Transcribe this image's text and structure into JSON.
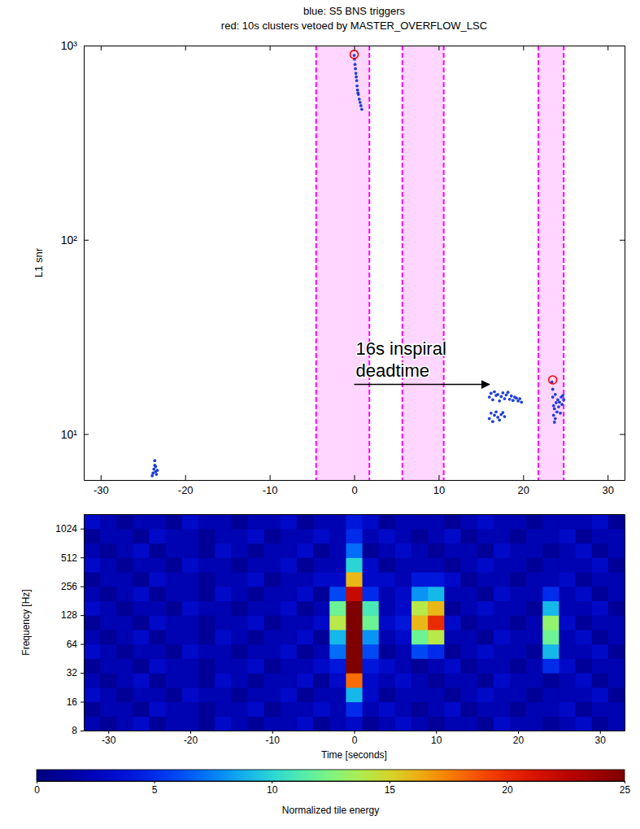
{
  "chart_data": [
    {
      "type": "scatter",
      "title": [
        "blue: S5 BNS triggers",
        "red: 10s clusters vetoed by MASTER_OVERFLOW_LSC"
      ],
      "y_label": "L1 snr",
      "log": "y",
      "xlim": [
        -32,
        32
      ],
      "xticks": [
        -30,
        -20,
        -10,
        0,
        10,
        20,
        30
      ],
      "ylim": [
        5.8,
        1000
      ],
      "yticks": [
        {
          "value": 10,
          "label": "10¹"
        },
        {
          "value": 100,
          "label": "10²"
        },
        {
          "value": 1000,
          "label": "10³"
        }
      ],
      "series": [
        {
          "color": "#1f3fd6",
          "marker": "dot",
          "x": [
            -23.9,
            -23.8,
            -23.7,
            -23.6,
            -23.6,
            -23.5,
            -23.5,
            -23.4,
            -23.3,
            0,
            0.05,
            0.1,
            0.15,
            0.2,
            0.25,
            0.3,
            0.35,
            0.4,
            0.45,
            0.5,
            0.6,
            0.7,
            0.8,
            0.9,
            16.0,
            16.2,
            16.4,
            16.6,
            16.8,
            17.0,
            17.2,
            17.4,
            17.6,
            17.8,
            18.0,
            18.2,
            18.4,
            18.6,
            18.8,
            19.0,
            19.2,
            19.4,
            19.6,
            19.8,
            16.0,
            16.2,
            16.4,
            16.6,
            16.8,
            17.0,
            17.2,
            17.4,
            17.6,
            17.8,
            23.4,
            23.5,
            23.5,
            23.6,
            23.6,
            23.7,
            23.7,
            23.8,
            23.8,
            23.9,
            24.0,
            24.1,
            24.2,
            24.3,
            24.4,
            24.5,
            24.6,
            24.7,
            24.8
          ],
          "values": [
            6.1,
            6.3,
            6.6,
            6.9,
            7.3,
            6.4,
            6.8,
            6.2,
            6.5,
            890,
            850,
            800,
            760,
            720,
            690,
            660,
            620,
            590,
            570,
            560,
            530,
            510,
            490,
            470,
            15.5,
            16.2,
            15.0,
            16.5,
            15.8,
            16.0,
            14.8,
            15.6,
            16.3,
            15.2,
            15.9,
            16.4,
            15.1,
            15.7,
            14.9,
            15.5,
            15.3,
            14.8,
            15.2,
            14.6,
            12.0,
            12.8,
            11.6,
            12.5,
            13.0,
            12.2,
            11.8,
            12.6,
            12.9,
            12.3,
            18.5,
            17.0,
            15.5,
            14.0,
            12.5,
            11.5,
            13.5,
            16.0,
            12.0,
            14.5,
            13.0,
            15.0,
            13.8,
            14.6,
            12.8,
            15.5,
            14.2,
            15.8,
            15.0
          ]
        },
        {
          "color": "#ff0000",
          "marker": "circle",
          "x": [
            0,
            23.5
          ],
          "values": [
            900,
            19
          ]
        }
      ],
      "veto_windows": {
        "color": "#ff00ff",
        "ranges": [
          [
            -4.5,
            1.8
          ],
          [
            5.7,
            10.6
          ],
          [
            21.8,
            24.8
          ]
        ]
      },
      "annotations": [
        {
          "text": [
            "16s inspiral",
            "deadtime"
          ],
          "x": [
            0,
            16
          ],
          "y": 18
        }
      ]
    },
    {
      "type": "heatmap",
      "x_label": "Time [seconds]",
      "y_label": "Frequency [Hz]",
      "log": "y",
      "xlim": [
        -33,
        33
      ],
      "xticks": [
        -30,
        -20,
        -10,
        0,
        10,
        20,
        30
      ],
      "ylim": [
        8,
        1448
      ],
      "yticks": [
        8,
        16,
        32,
        64,
        128,
        256,
        512,
        1024
      ],
      "x_bins": [
        -33,
        -31,
        -29,
        -27,
        -25,
        -23,
        -21,
        -19,
        -17,
        -15,
        -13,
        -11,
        -9,
        -7,
        -5,
        -3,
        -1,
        1,
        3,
        5,
        7,
        9,
        11,
        13,
        15,
        17,
        19,
        21,
        23,
        25,
        27,
        29,
        31,
        33
      ],
      "y_bins": [
        8,
        11.3,
        16,
        22.6,
        32,
        45.3,
        64,
        90.5,
        128,
        181,
        256,
        362,
        512,
        724,
        1024,
        1448
      ],
      "cells": [
        [
          2,
          1,
          2,
          3,
          1,
          2,
          2,
          1,
          3,
          2,
          1,
          2,
          2,
          3,
          1,
          2,
          3,
          1,
          2,
          3,
          2,
          1,
          2,
          2,
          1,
          3,
          2,
          2,
          1,
          2,
          3,
          1,
          2
        ],
        [
          1,
          2,
          2,
          1,
          3,
          2,
          2,
          1,
          2,
          2,
          3,
          1,
          2,
          2,
          3,
          2,
          5,
          2,
          3,
          2,
          1,
          2,
          3,
          1,
          2,
          2,
          1,
          2,
          2,
          3,
          1,
          2,
          2
        ],
        [
          3,
          2,
          1,
          2,
          2,
          1,
          3,
          2,
          2,
          1,
          2,
          2,
          3,
          1,
          2,
          2,
          9,
          3,
          1,
          2,
          2,
          2,
          1,
          2,
          3,
          2,
          2,
          1,
          2,
          2,
          2,
          3,
          1
        ],
        [
          2,
          1,
          2,
          3,
          1,
          2,
          2,
          1,
          3,
          2,
          1,
          2,
          2,
          3,
          1,
          3,
          18,
          3,
          2,
          3,
          2,
          1,
          2,
          2,
          1,
          3,
          2,
          2,
          1,
          2,
          3,
          1,
          2
        ],
        [
          1,
          2,
          2,
          1,
          3,
          2,
          2,
          1,
          2,
          2,
          3,
          1,
          2,
          2,
          3,
          4,
          25,
          4,
          3,
          2,
          1,
          2,
          3,
          1,
          2,
          2,
          1,
          2,
          5,
          3,
          1,
          2,
          2
        ],
        [
          3,
          2,
          1,
          2,
          2,
          1,
          3,
          2,
          2,
          1,
          2,
          2,
          3,
          1,
          2,
          7,
          25,
          6,
          1,
          2,
          6,
          5,
          1,
          2,
          3,
          2,
          2,
          1,
          9,
          2,
          2,
          3,
          1
        ],
        [
          2,
          1,
          2,
          3,
          1,
          2,
          2,
          1,
          3,
          2,
          1,
          2,
          2,
          3,
          1,
          9,
          25,
          8,
          2,
          3,
          12,
          14,
          2,
          2,
          1,
          3,
          2,
          2,
          12,
          2,
          3,
          1,
          2
        ],
        [
          1,
          2,
          2,
          1,
          3,
          2,
          2,
          1,
          2,
          2,
          3,
          1,
          2,
          2,
          3,
          14,
          25,
          12,
          3,
          4,
          16,
          20,
          3,
          1,
          2,
          2,
          1,
          2,
          13,
          3,
          1,
          2,
          2
        ],
        [
          3,
          2,
          1,
          2,
          2,
          1,
          3,
          2,
          2,
          1,
          2,
          2,
          3,
          1,
          2,
          12,
          25,
          11,
          2,
          3,
          14,
          16,
          1,
          2,
          3,
          2,
          2,
          1,
          9,
          2,
          2,
          3,
          1
        ],
        [
          2,
          1,
          2,
          3,
          1,
          2,
          2,
          1,
          3,
          2,
          1,
          2,
          2,
          3,
          1,
          6,
          22,
          5,
          2,
          3,
          8,
          9,
          2,
          2,
          1,
          3,
          2,
          2,
          5,
          2,
          3,
          1,
          2
        ],
        [
          1,
          2,
          2,
          1,
          3,
          2,
          2,
          1,
          2,
          2,
          3,
          1,
          2,
          2,
          3,
          3,
          16,
          3,
          3,
          2,
          4,
          4,
          3,
          1,
          2,
          2,
          1,
          2,
          2,
          3,
          1,
          2,
          2
        ],
        [
          3,
          2,
          1,
          2,
          2,
          1,
          3,
          2,
          2,
          1,
          2,
          2,
          3,
          1,
          2,
          2,
          10,
          3,
          1,
          2,
          2,
          2,
          1,
          2,
          3,
          2,
          2,
          1,
          2,
          2,
          2,
          3,
          1
        ],
        [
          2,
          1,
          2,
          3,
          1,
          2,
          2,
          1,
          3,
          2,
          1,
          2,
          2,
          3,
          1,
          2,
          7,
          1,
          2,
          3,
          2,
          1,
          2,
          2,
          1,
          3,
          2,
          2,
          1,
          2,
          3,
          1,
          2
        ],
        [
          1,
          2,
          2,
          1,
          3,
          2,
          2,
          1,
          2,
          2,
          3,
          1,
          2,
          2,
          3,
          2,
          5,
          2,
          3,
          2,
          1,
          2,
          3,
          1,
          2,
          2,
          1,
          2,
          2,
          3,
          1,
          2,
          2
        ],
        [
          3,
          2,
          1,
          2,
          2,
          1,
          3,
          2,
          2,
          1,
          2,
          2,
          3,
          1,
          2,
          2,
          4,
          3,
          1,
          2,
          2,
          2,
          1,
          2,
          3,
          2,
          2,
          1,
          2,
          2,
          2,
          3,
          1
        ]
      ],
      "colorbar": {
        "label": "Normalized tile energy",
        "range": [
          0,
          25
        ],
        "ticks": [
          0,
          5,
          10,
          15,
          20,
          25
        ]
      }
    }
  ]
}
